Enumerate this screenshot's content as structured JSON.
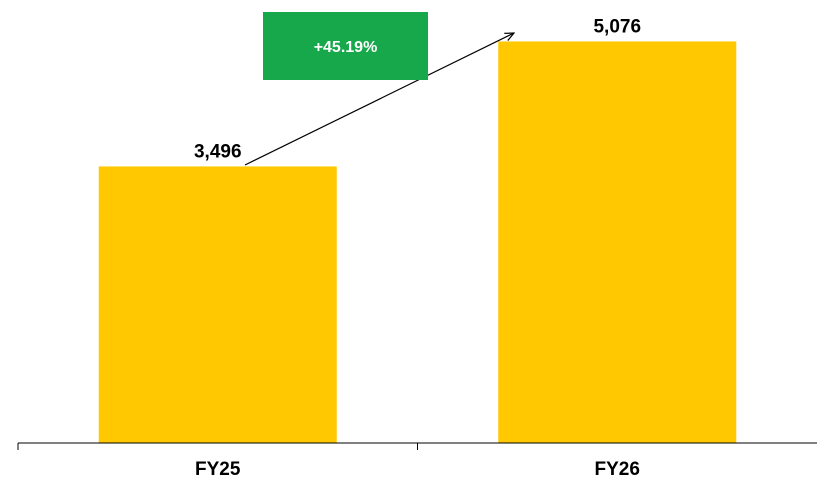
{
  "colors": {
    "bar": "#FFC800",
    "growth_badge": "#17A84B",
    "growth_text": "#FFFFFF",
    "axis": "#000000",
    "text": "#000000"
  },
  "chart_data": {
    "type": "bar",
    "title": "",
    "xlabel": "",
    "ylabel": "",
    "categories": [
      "FY25",
      "FY26"
    ],
    "values": [
      3496,
      5076
    ],
    "data_labels": [
      "3,496",
      "5,076"
    ],
    "ylim": [
      0,
      5600
    ],
    "grid": false,
    "y_axis_visible": false,
    "legend": "none",
    "annotation": {
      "text": "+45.19%",
      "type": "growth-arrow",
      "from": "FY25",
      "to": "FY26"
    }
  }
}
